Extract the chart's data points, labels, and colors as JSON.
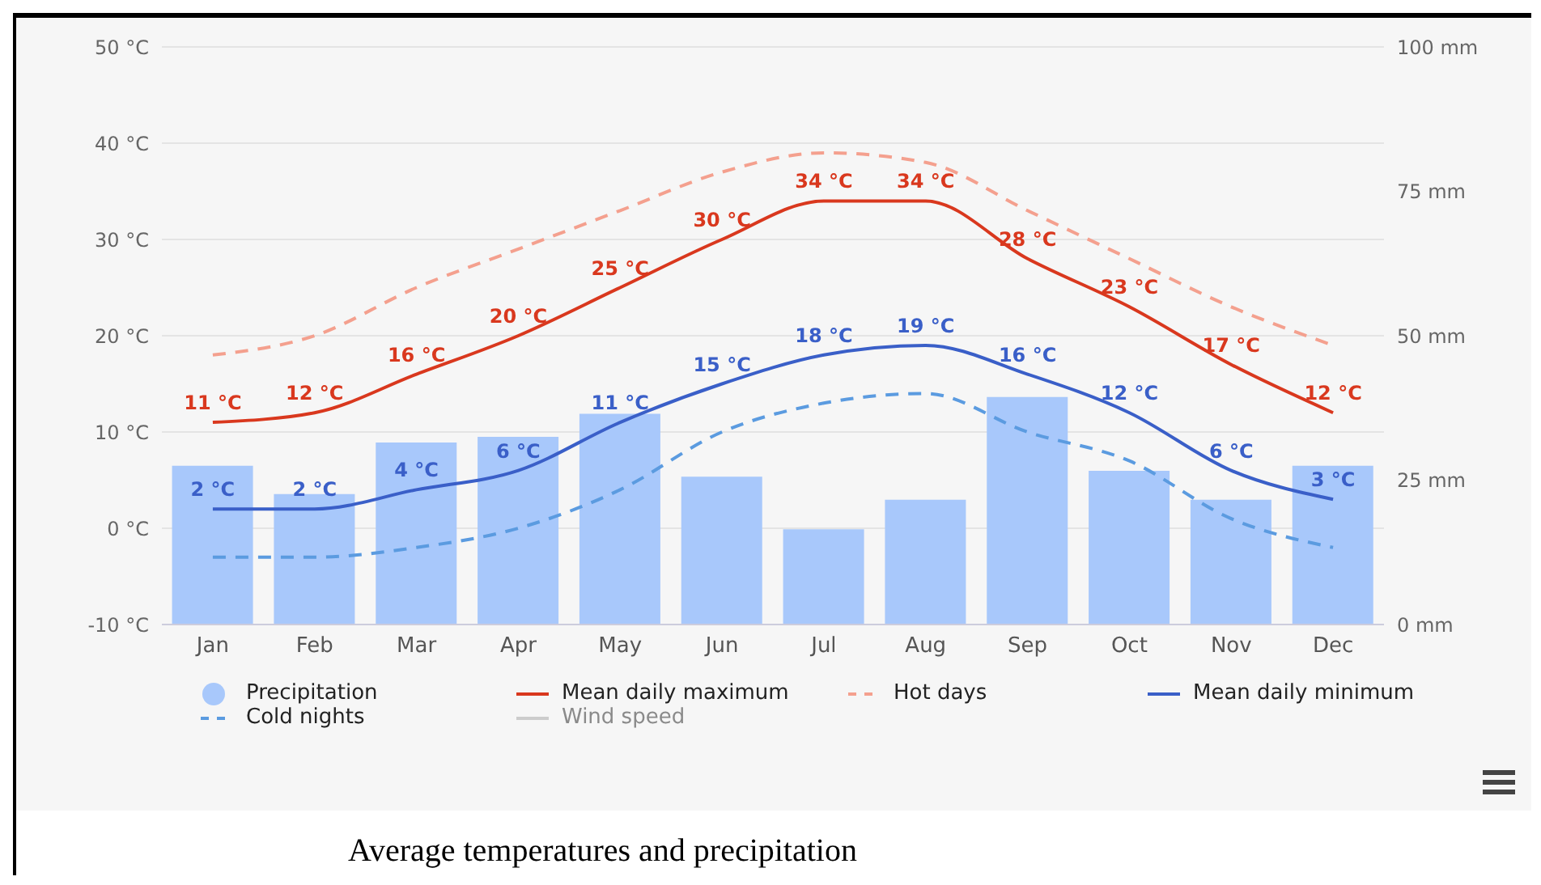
{
  "chart_data": {
    "type": "line",
    "title": "Average temperatures and precipitation",
    "categories": [
      "Jan",
      "Feb",
      "Mar",
      "Apr",
      "May",
      "Jun",
      "Jul",
      "Aug",
      "Sep",
      "Oct",
      "Nov",
      "Dec"
    ],
    "series": [
      {
        "name": "Precipitation",
        "type": "bar",
        "axis": "y2",
        "color": "#a8c8fb",
        "values": [
          27.5,
          22.6,
          31.5,
          32.5,
          36.5,
          25.6,
          16.5,
          21.6,
          39.4,
          26.6,
          21.6,
          27.5
        ]
      },
      {
        "name": "Mean daily maximum",
        "color": "#d9381e",
        "line_style": "solid",
        "values": [
          11,
          12,
          16,
          20,
          25,
          30,
          34,
          34,
          28,
          23,
          17,
          12
        ],
        "value_labels": [
          "11 °C",
          "12 °C",
          "16 °C",
          "20 °C",
          "25 °C",
          "30 °C",
          "34 °C",
          "34 °C",
          "28 °C",
          "23 °C",
          "17 °C",
          "12 °C"
        ]
      },
      {
        "name": "Hot days",
        "color": "#f4a08e",
        "line_style": "dashed",
        "values": [
          18,
          20,
          25,
          29,
          33,
          37,
          39,
          38,
          33,
          28,
          23,
          19
        ]
      },
      {
        "name": "Mean daily minimum",
        "color": "#3a5fc8",
        "line_style": "solid",
        "values": [
          2,
          2,
          4,
          6,
          11,
          15,
          18,
          19,
          16,
          12,
          6,
          3
        ],
        "value_labels": [
          "2 °C",
          "2 °C",
          "4 °C",
          "6 °C",
          "11 °C",
          "15 °C",
          "18 °C",
          "19 °C",
          "16 °C",
          "12 °C",
          "6 °C",
          "3 °C"
        ]
      },
      {
        "name": "Cold nights",
        "color": "#5b9be0",
        "line_style": "dashed",
        "values": [
          -3,
          -3,
          -2,
          0,
          4,
          10,
          13,
          14,
          10,
          7,
          1,
          -2
        ]
      },
      {
        "name": "Wind speed",
        "color": "#cccccc",
        "line_style": "solid",
        "values": [
          null,
          null,
          null,
          null,
          null,
          null,
          null,
          null,
          null,
          null,
          null,
          null
        ]
      }
    ],
    "ylim": [
      -10,
      50
    ],
    "yticks": [
      {
        "value": -10,
        "label": "-10 °C"
      },
      {
        "value": 0,
        "label": "0 °C"
      },
      {
        "value": 10,
        "label": "10 °C"
      },
      {
        "value": 20,
        "label": "20 °C"
      },
      {
        "value": 30,
        "label": "30 °C"
      },
      {
        "value": 40,
        "label": "40 °C"
      },
      {
        "value": 50,
        "label": "50 °C"
      }
    ],
    "y2lim": [
      0,
      100
    ],
    "y2ticks": [
      {
        "value": 0,
        "label": "0 mm"
      },
      {
        "value": 25,
        "label": "25 mm"
      },
      {
        "value": 50,
        "label": "50 mm"
      },
      {
        "value": 75,
        "label": "75 mm"
      },
      {
        "value": 100,
        "label": "100 mm"
      }
    ],
    "grid": "y",
    "legend": "bottom",
    "marker": "none"
  }
}
